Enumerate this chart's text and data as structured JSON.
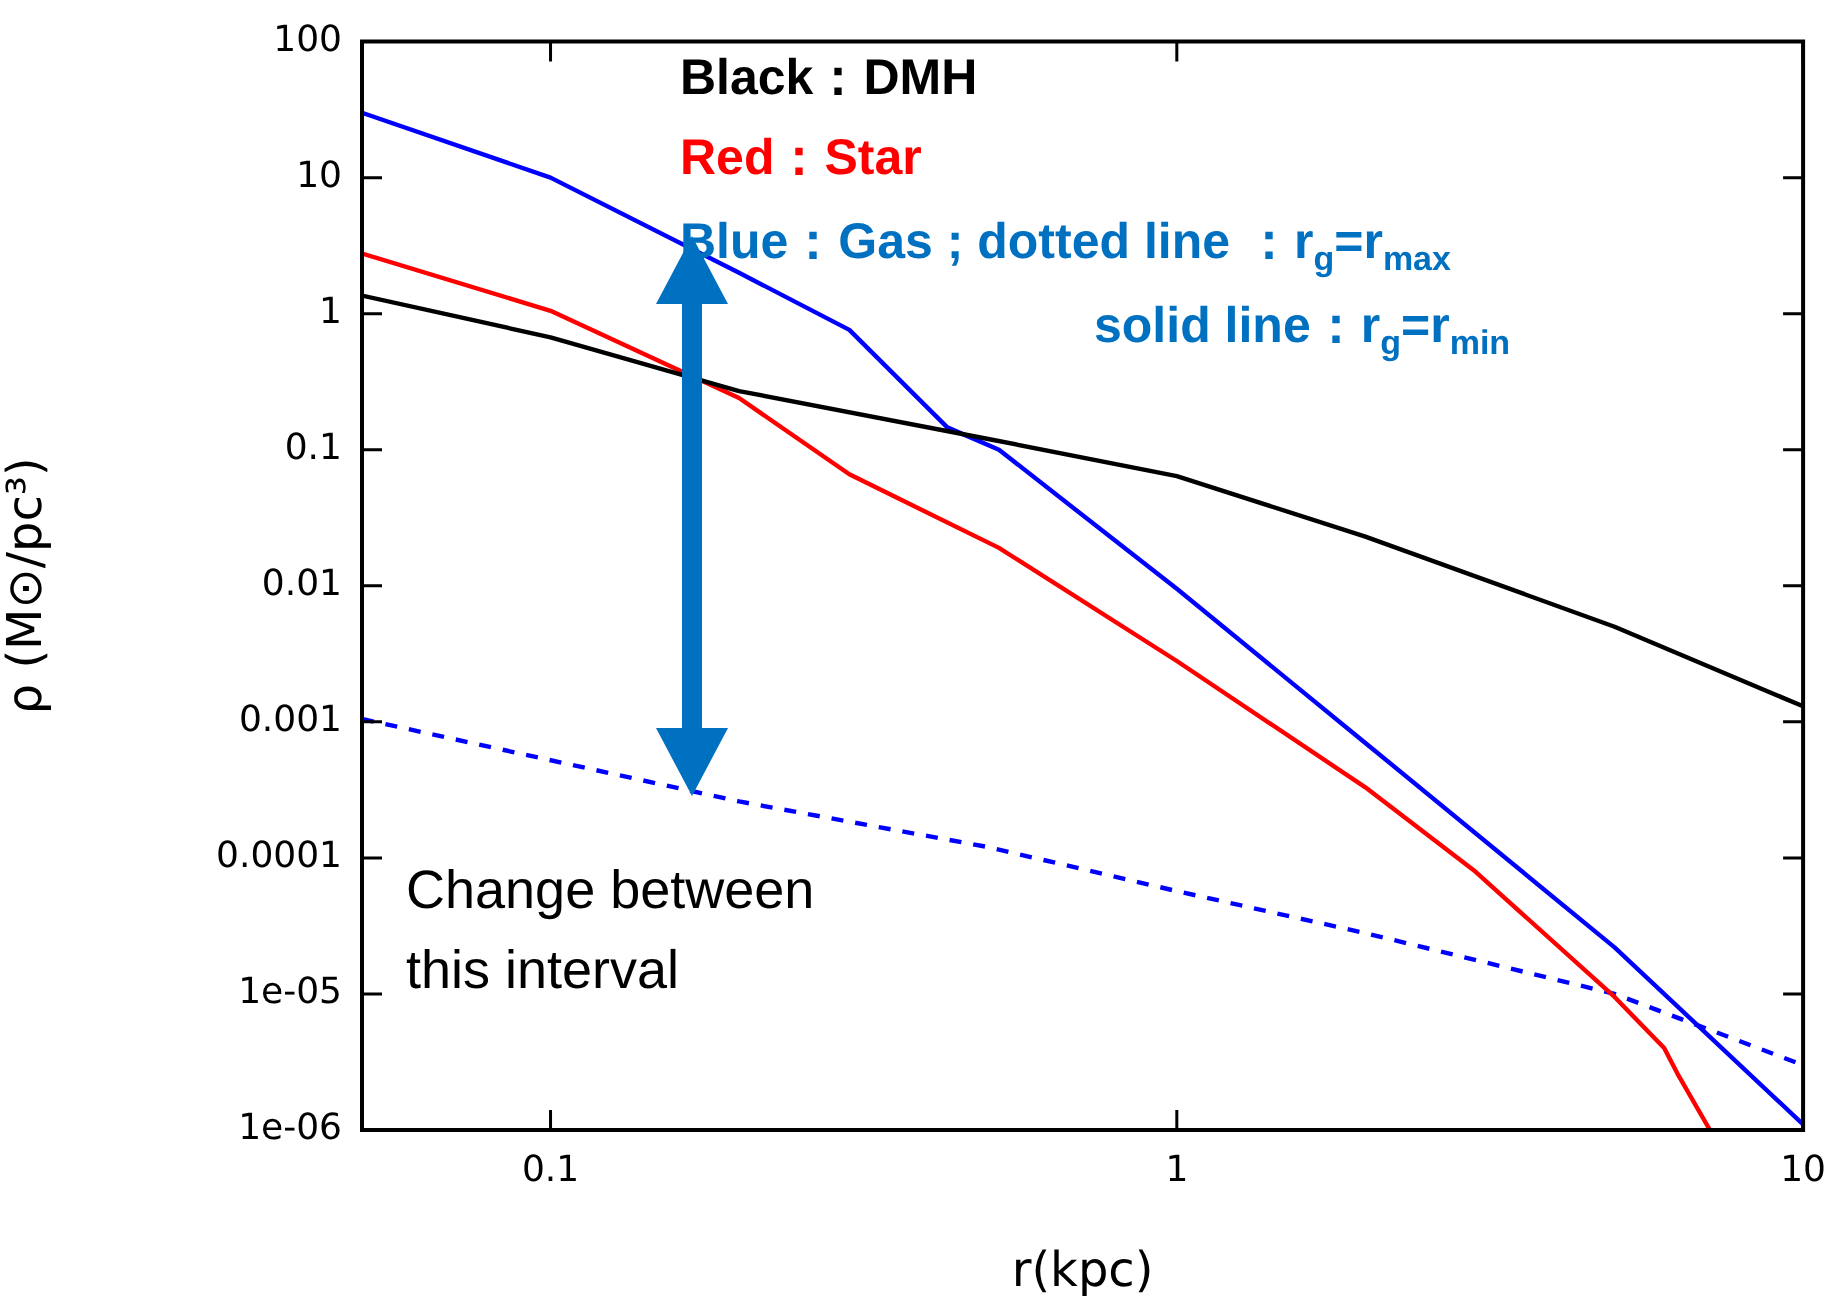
{
  "chart_data": {
    "type": "line",
    "xlabel": "r(kpc)",
    "ylabel": "ρ (M⊙/pc³)",
    "log": "xy",
    "grid": false,
    "legend": false,
    "marker": "none",
    "xlim": [
      0.05,
      10
    ],
    "xticks": [
      0.1,
      1,
      10
    ],
    "ylim": [
      1e-06,
      100
    ],
    "yticks": [
      {
        "value": 1e-06,
        "label": "1e-06"
      },
      {
        "value": 1e-05,
        "label": "1e-05"
      },
      0.0001,
      0.001,
      0.01,
      0.1,
      1,
      10,
      100
    ],
    "series": [
      {
        "color": "#000000",
        "line_style": "solid",
        "x": [
          0.05,
          0.1,
          0.2,
          0.5,
          1,
          2,
          5,
          10
        ],
        "values": [
          1.36,
          0.67,
          0.27,
          0.12,
          0.064,
          0.023,
          0.005,
          0.0013
        ]
      },
      {
        "color": "#ff0000",
        "line_style": "solid",
        "x": [
          0.05,
          0.1,
          0.2,
          0.3,
          0.52,
          1,
          2,
          3,
          5,
          6,
          6.3,
          7.1
        ],
        "values": [
          2.77,
          1.05,
          0.24,
          0.066,
          0.019,
          0.0028,
          0.00033,
          7.9e-05,
          9.5e-06,
          4e-06,
          2.6e-06,
          1e-06
        ]
      },
      {
        "color": "#0000ff",
        "line_style": "solid",
        "x": [
          0.05,
          0.1,
          0.2,
          0.3,
          0.43,
          0.52,
          1,
          2,
          5,
          10
        ],
        "values": [
          30,
          10,
          2,
          0.76,
          0.146,
          0.1,
          0.0095,
          0.0007,
          2.2e-05,
          1.1e-06
        ]
      },
      {
        "color": "#0000ff",
        "line_style": "dashed",
        "x": [
          0.05,
          0.2,
          0.5,
          1,
          2,
          5,
          10
        ],
        "values": [
          0.00105,
          0.00026,
          0.00012,
          5.7e-05,
          2.8e-05,
          1e-05,
          3e-06
        ]
      }
    ],
    "annotations": [
      "Black：DMH",
      "Red：Star",
      "Blue：Gas ; dotted line ：r$_{g}$=r$_{max}$",
      "solid line：r$_{g}$=r$_{min}$",
      "Change between this interval"
    ]
  }
}
